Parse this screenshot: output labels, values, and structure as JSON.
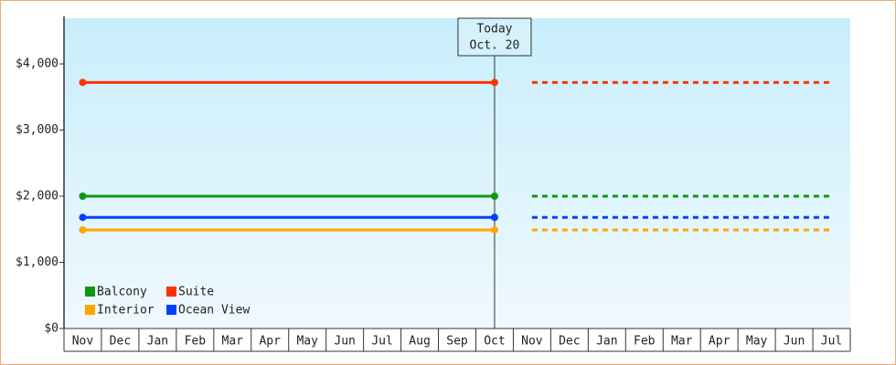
{
  "chart_data": {
    "type": "line",
    "categories": [
      "Nov",
      "Dec",
      "Jan",
      "Feb",
      "Mar",
      "Apr",
      "May",
      "Jun",
      "Jul",
      "Aug",
      "Sep",
      "Oct",
      "Nov",
      "Dec",
      "Jan",
      "Feb",
      "Mar",
      "Apr",
      "May",
      "Jun",
      "Jul"
    ],
    "series": [
      {
        "name": "Balcony",
        "color": "#129612",
        "values": [
          2000,
          2000,
          2000,
          2000,
          2000,
          2000,
          2000,
          2000,
          2000,
          2000,
          2000,
          2000,
          2000,
          2000,
          2000,
          2000,
          2000,
          2000,
          2000,
          2000,
          2000
        ]
      },
      {
        "name": "Suite",
        "color": "#ff3300",
        "values": [
          3720,
          3720,
          3720,
          3720,
          3720,
          3720,
          3720,
          3720,
          3720,
          3720,
          3720,
          3720,
          3720,
          3720,
          3720,
          3720,
          3720,
          3720,
          3720,
          3720,
          3720
        ]
      },
      {
        "name": "Interior",
        "color": "#ffa500",
        "values": [
          1490,
          1490,
          1490,
          1490,
          1490,
          1490,
          1490,
          1490,
          1490,
          1490,
          1490,
          1490,
          1490,
          1490,
          1490,
          1490,
          1490,
          1490,
          1490,
          1490,
          1490
        ]
      },
      {
        "name": "Ocean View",
        "color": "#0040ff",
        "values": [
          1680,
          1680,
          1680,
          1680,
          1680,
          1680,
          1680,
          1680,
          1680,
          1680,
          1680,
          1680,
          1680,
          1680,
          1680,
          1680,
          1680,
          1680,
          1680,
          1680,
          1680
        ]
      }
    ],
    "annotation": {
      "lines": [
        "Today",
        "Oct. 20"
      ],
      "at": 11
    },
    "ylim": [
      0,
      4690
    ],
    "yticks": [
      {
        "value": 0,
        "label": "$0"
      },
      {
        "value": 1000,
        "label": "$1,000"
      },
      {
        "value": 2000,
        "label": "$2,000"
      },
      {
        "value": 3000,
        "label": "$3,000"
      },
      {
        "value": 4000,
        "label": "$4,000"
      }
    ],
    "legend": "bottom-left"
  }
}
